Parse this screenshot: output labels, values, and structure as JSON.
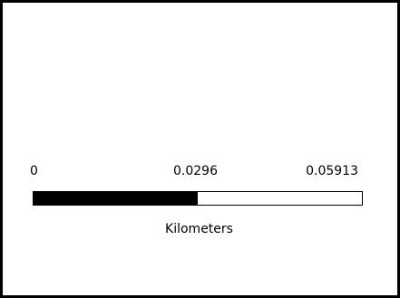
{
  "scale_bar": {
    "tick_labels": [
      "0",
      "0.0296",
      "0.05913"
    ],
    "unit": "Kilometers",
    "segments": [
      "#000000",
      "#ffffff"
    ]
  }
}
